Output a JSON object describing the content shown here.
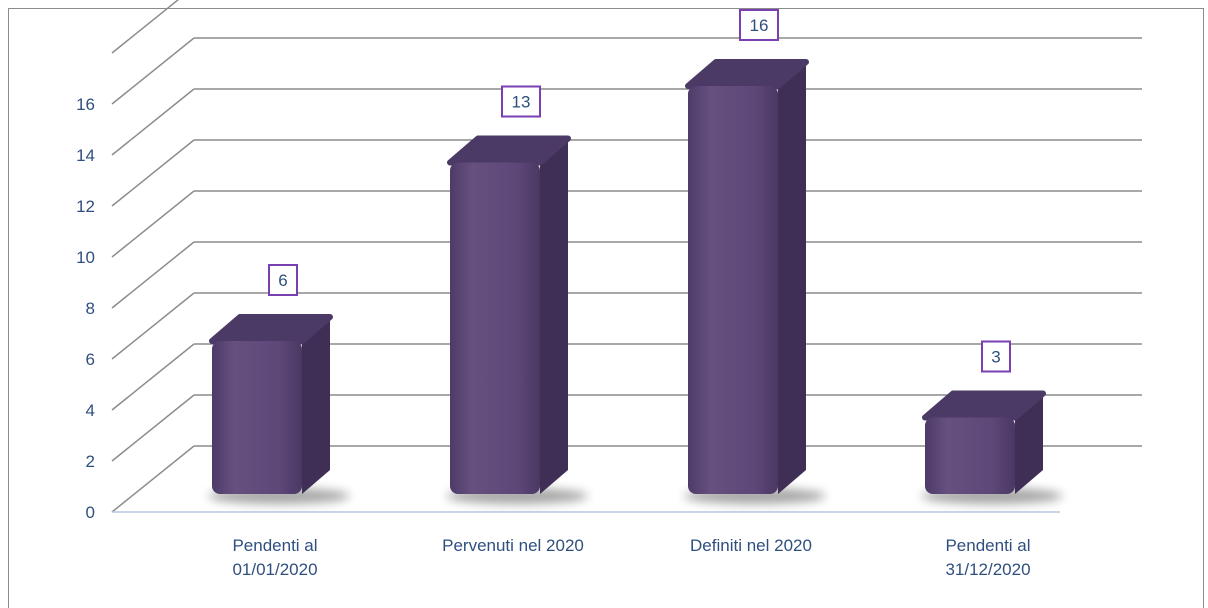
{
  "chart_data": {
    "type": "bar",
    "categories": [
      [
        "Pendenti al",
        "01/01/2020"
      ],
      [
        "Pervenuti nel 2020"
      ],
      [
        "Definiti nel 2020"
      ],
      [
        "Pendenti al",
        "31/12/2020"
      ]
    ],
    "values": [
      6,
      13,
      16,
      3
    ],
    "ylim": [
      0,
      16
    ],
    "yticks": [
      0,
      2,
      4,
      6,
      8,
      10,
      12,
      14,
      16
    ],
    "grid": true,
    "title": "",
    "xlabel": "",
    "ylabel": ""
  },
  "colors": {
    "bar_front": "#5d4779",
    "bar_side": "#3f2f56",
    "bar_top": "#4c3a66",
    "label_border": "#7a3fb0",
    "grid": "#8c8c8c",
    "text": "#2f4f7f"
  }
}
